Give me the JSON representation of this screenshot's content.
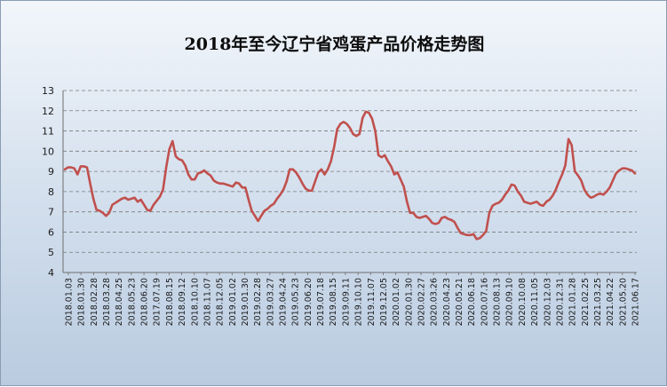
{
  "chart_data": {
    "type": "line",
    "title": "2018年至今辽宁省鸡蛋产品价格走势图",
    "xlabel": "",
    "ylabel": "",
    "ylim": [
      4,
      13
    ],
    "yticks": [
      4,
      5,
      6,
      7,
      8,
      9,
      10,
      11,
      12,
      13
    ],
    "grid": true,
    "legend": "none",
    "series": [
      {
        "color": "#c0504d",
        "values": [
          9.1,
          9.2,
          9.2,
          9.15,
          8.85,
          9.25,
          9.25,
          9.2,
          8.4,
          7.65,
          7.1,
          7.05,
          6.95,
          6.8,
          6.95,
          7.35,
          7.45,
          7.55,
          7.65,
          7.7,
          7.6,
          7.65,
          7.7,
          7.5,
          7.6,
          7.35,
          7.1,
          7.05,
          7.35,
          7.55,
          7.75,
          8.1,
          9.2,
          10.1,
          10.5,
          9.75,
          9.6,
          9.55,
          9.3,
          8.85,
          8.6,
          8.6,
          8.9,
          8.95,
          9.05,
          8.9,
          8.8,
          8.55,
          8.45,
          8.4,
          8.4,
          8.35,
          8.3,
          8.25,
          8.45,
          8.4,
          8.2,
          8.2,
          7.6,
          7.05,
          6.8,
          6.55,
          6.8,
          7.05,
          7.15,
          7.3,
          7.4,
          7.65,
          7.85,
          8.1,
          8.5,
          9.1,
          9.1,
          8.95,
          8.7,
          8.4,
          8.15,
          8.05,
          8.05,
          8.5,
          8.95,
          9.1,
          8.85,
          9.1,
          9.5,
          10.2,
          11.1,
          11.35,
          11.45,
          11.35,
          11.15,
          10.85,
          10.75,
          10.85,
          11.65,
          11.95,
          11.9,
          11.6,
          11.0,
          9.8,
          9.7,
          9.8,
          9.5,
          9.25,
          8.85,
          8.95,
          8.6,
          8.25,
          7.5,
          6.95,
          6.95,
          6.75,
          6.7,
          6.75,
          6.8,
          6.65,
          6.45,
          6.4,
          6.45,
          6.7,
          6.75,
          6.65,
          6.6,
          6.5,
          6.2,
          5.95,
          5.9,
          5.85,
          5.85,
          5.9,
          5.65,
          5.7,
          5.85,
          6.05,
          6.95,
          7.3,
          7.4,
          7.45,
          7.6,
          7.85,
          8.05,
          8.35,
          8.3,
          8.0,
          7.8,
          7.5,
          7.45,
          7.4,
          7.45,
          7.5,
          7.35,
          7.3,
          7.5,
          7.6,
          7.8,
          8.1,
          8.5,
          8.85,
          9.3,
          10.6,
          10.3,
          9.0,
          8.8,
          8.55,
          8.1,
          7.85,
          7.7,
          7.75,
          7.85,
          7.9,
          7.85,
          8.0,
          8.2,
          8.55,
          8.9,
          9.05,
          9.15,
          9.15,
          9.1,
          9.05,
          8.9
        ]
      }
    ],
    "x_labels": [
      "2018.01.03",
      "2018.01.30",
      "2018.02.28",
      "2018.03.28",
      "2018.04.25",
      "2018.05.23",
      "2018.06.20",
      "2017.07.19",
      "2018.08.15",
      "2018.09.12",
      "2018.10.10",
      "2018.11.07",
      "2018.12.05",
      "2019.01.02",
      "2019.01.30",
      "2019.02.28",
      "2019.03.27",
      "2019.04.24",
      "2019.05.23",
      "2019.06.20",
      "2019.07.18",
      "2019.08.15",
      "2019.09.11",
      "2019.10.10",
      "2019.11.07",
      "2019.12.05",
      "2020.01.02",
      "2020.01.30",
      "2020.02.27",
      "2020.03.26",
      "2020.04.23",
      "2020.05.21",
      "2020.06.18",
      "2020.07.16",
      "2020.08.13",
      "2020.09.10",
      "2020.10.08",
      "2020.11.05",
      "2020.12.03",
      "2020.12.31",
      "2021.01.28",
      "2021.02.25",
      "2021.03.25",
      "2021.04.22",
      "2021.05.20",
      "2021.06.17"
    ]
  }
}
